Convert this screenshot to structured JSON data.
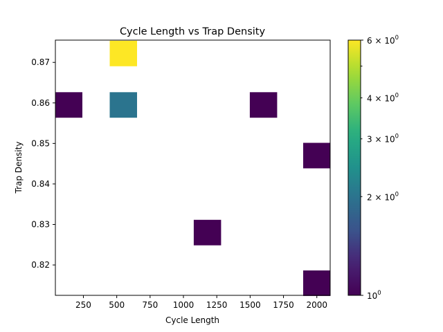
{
  "chart_data": {
    "type": "heatmap",
    "title": "Cycle Length vs Trap Density",
    "xlabel": "Cycle Length",
    "ylabel": "Trap Density",
    "xlim": [
      40,
      2100
    ],
    "ylim": [
      0.8125,
      0.8755
    ],
    "xticks": [
      {
        "value": 250,
        "label": "250"
      },
      {
        "value": 500,
        "label": "500"
      },
      {
        "value": 750,
        "label": "750"
      },
      {
        "value": 1000,
        "label": "1000"
      },
      {
        "value": 1250,
        "label": "1250"
      },
      {
        "value": 1500,
        "label": "1500"
      },
      {
        "value": 1750,
        "label": "1750"
      },
      {
        "value": 2000,
        "label": "2000"
      }
    ],
    "yticks": [
      {
        "value": 0.82,
        "label": "0.82"
      },
      {
        "value": 0.83,
        "label": "0.83"
      },
      {
        "value": 0.84,
        "label": "0.84"
      },
      {
        "value": 0.85,
        "label": "0.85"
      },
      {
        "value": 0.86,
        "label": "0.86"
      },
      {
        "value": 0.87,
        "label": "0.87"
      }
    ],
    "bin_width": 205,
    "bin_height": 0.0063,
    "cells": [
      {
        "x": 140,
        "y": 0.8595,
        "count": 1
      },
      {
        "x": 550,
        "y": 0.8595,
        "count": 2
      },
      {
        "x": 550,
        "y": 0.8722,
        "count": 6
      },
      {
        "x": 1600,
        "y": 0.8595,
        "count": 1
      },
      {
        "x": 2000,
        "y": 0.847,
        "count": 1
      },
      {
        "x": 1180,
        "y": 0.828,
        "count": 1
      },
      {
        "x": 2000,
        "y": 0.8155,
        "count": 1
      }
    ],
    "grid": false,
    "colorbar": {
      "colormap": "viridis",
      "scale": "log",
      "range": [
        1,
        6
      ],
      "major_ticks": [
        {
          "value": 1,
          "base": "10",
          "exp": "0"
        },
        {
          "value": 6,
          "base": "6 × 10",
          "exp": "0"
        }
      ],
      "minor_ticks": [
        {
          "value": 2,
          "base": "2 × 10",
          "exp": "0"
        },
        {
          "value": 3,
          "base": "3 × 10",
          "exp": "0"
        },
        {
          "value": 4,
          "base": "4 × 10",
          "exp": "0"
        },
        {
          "value": 5,
          "base": "",
          "exp": ""
        }
      ]
    }
  }
}
